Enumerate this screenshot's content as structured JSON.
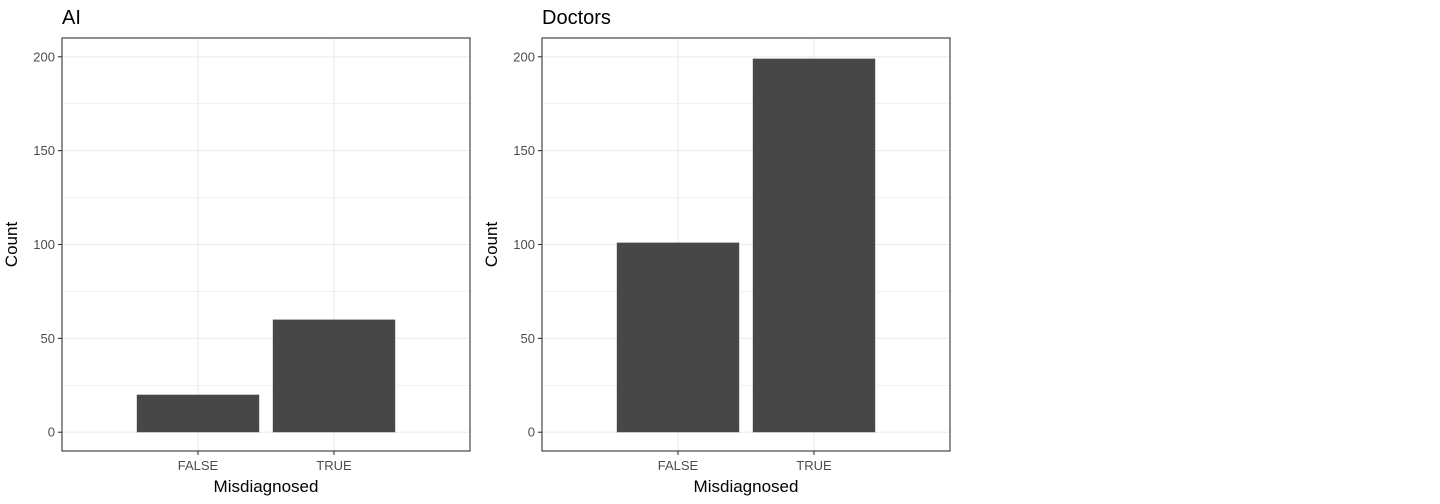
{
  "chart_data": [
    {
      "type": "bar",
      "title": "AI",
      "xlabel": "Misdiagnosed",
      "ylabel": "Count",
      "categories": [
        "FALSE",
        "TRUE"
      ],
      "values": [
        20,
        60
      ],
      "ylim": [
        -10,
        210
      ],
      "yticks": [
        0,
        50,
        100,
        150,
        200
      ],
      "grid": true,
      "bar_color": "#474747"
    },
    {
      "type": "bar",
      "title": "Doctors",
      "xlabel": "Misdiagnosed",
      "ylabel": "Count",
      "categories": [
        "FALSE",
        "TRUE"
      ],
      "values": [
        101,
        199
      ],
      "ylim": [
        -10,
        210
      ],
      "yticks": [
        0,
        50,
        100,
        150,
        200
      ],
      "grid": true,
      "bar_color": "#474747"
    }
  ]
}
